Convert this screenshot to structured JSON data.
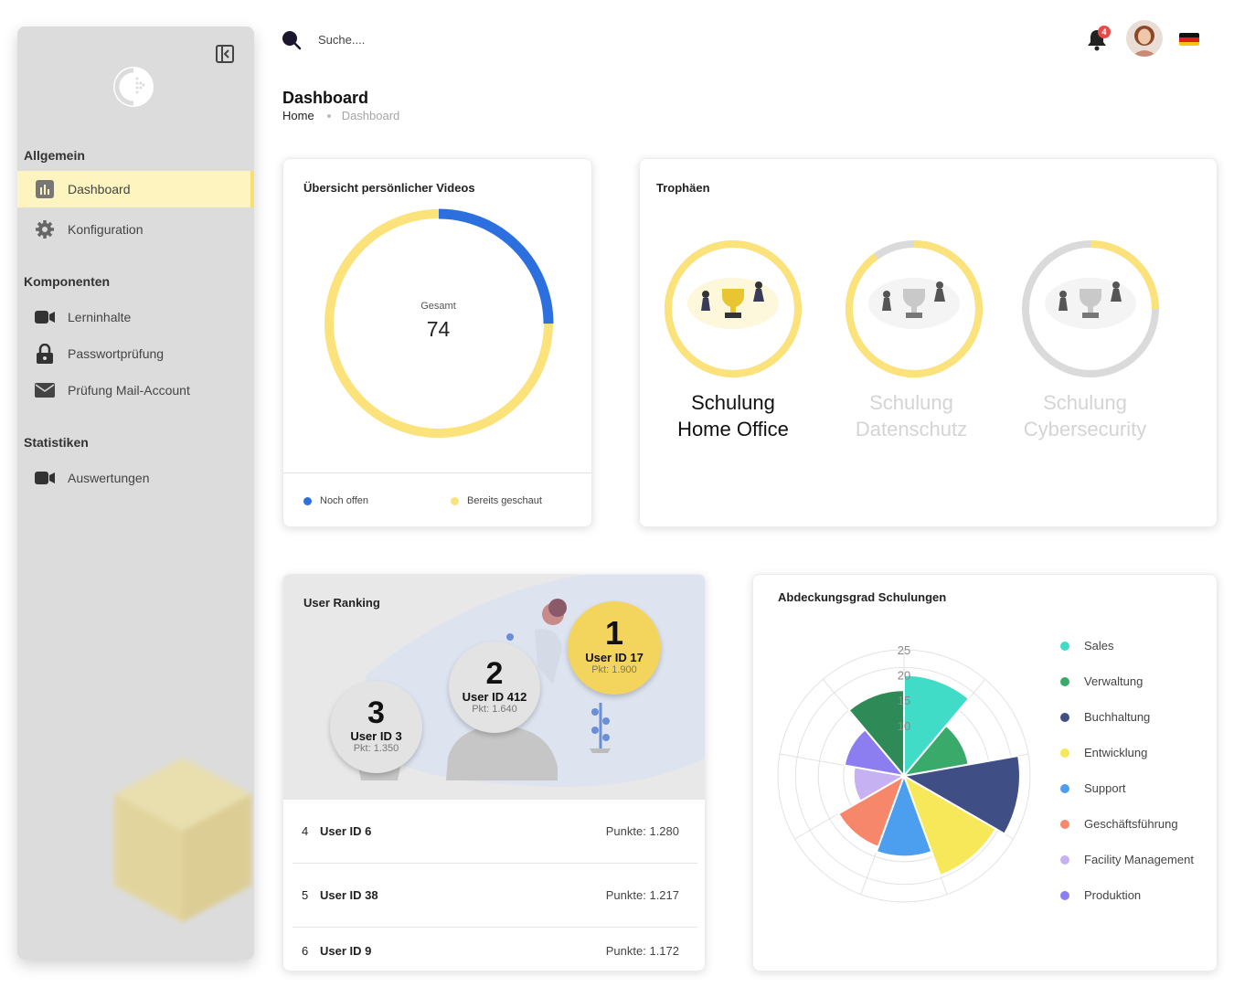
{
  "sidebar": {
    "sections": {
      "general": "Allgemein",
      "components": "Komponenten",
      "statistics": "Statistiken"
    },
    "items": {
      "dashboard": "Dashboard",
      "configuration": "Konfiguration",
      "learning": "Lerninhalte",
      "password": "Passwortprüfung",
      "mail": "Prüfung Mail-Account",
      "reports": "Auswertungen"
    }
  },
  "header": {
    "search_placeholder": "Suche....",
    "notification_count": "4",
    "language_flag": "de"
  },
  "page": {
    "title": "Dashboard",
    "breadcrumb": [
      "Home",
      "Dashboard"
    ]
  },
  "videos": {
    "title": "Übersicht persönlicher Videos",
    "total_label": "Gesamt",
    "total_value": "74",
    "legend": [
      "Noch offen",
      "Bereits geschaut"
    ],
    "open_fraction": 0.25,
    "colors": {
      "open": "#2c6fde",
      "watched": "#fbe27a"
    }
  },
  "trophies": {
    "title": "Trophäen",
    "items": [
      {
        "line1": "Schulung",
        "line2": "Home Office",
        "progress": 1.0,
        "active": true
      },
      {
        "line1": "Schulung",
        "line2": "Datenschutz",
        "progress": 0.9,
        "active": false
      },
      {
        "line1": "Schulung",
        "line2": "Cybersecurity",
        "progress": 0.25,
        "active": false
      }
    ]
  },
  "ranking": {
    "title": "User Ranking",
    "podium": [
      {
        "rank": "1",
        "user": "User ID 17",
        "points": "Pkt: 1.900"
      },
      {
        "rank": "2",
        "user": "User ID 412",
        "points": "Pkt: 1.640"
      },
      {
        "rank": "3",
        "user": "User ID 3",
        "points": "Pkt: 1.350"
      }
    ],
    "rows": [
      {
        "pos": "4",
        "user": "User ID 6",
        "points": "Punkte: 1.280"
      },
      {
        "pos": "5",
        "user": "User ID 38",
        "points": "Punkte: 1.217"
      },
      {
        "pos": "6",
        "user": "User ID 9",
        "points": "Punkte: 1.172"
      }
    ]
  },
  "coverage": {
    "title": "Abdeckungsgrad Schulungen",
    "legend": [
      {
        "label": "Sales",
        "color": "#40dcc8"
      },
      {
        "label": "Verwaltung",
        "color": "#3aaa6a"
      },
      {
        "label": "Buchhaltung",
        "color": "#3f4f85"
      },
      {
        "label": "Entwicklung",
        "color": "#f7e85a"
      },
      {
        "label": "Support",
        "color": "#4b9fee"
      },
      {
        "label": "Geschäftsführung",
        "color": "#f7876a"
      },
      {
        "label": "Facility Management",
        "color": "#c6b2f2"
      },
      {
        "label": "Produktion",
        "color": "#8c7ef0"
      }
    ]
  },
  "chart_data": {
    "type": "polar-area",
    "title": "Abdeckungsgrad Schulungen",
    "r_ticks": [
      "10",
      "15",
      "20",
      "25"
    ],
    "rmax": 25,
    "series": [
      {
        "name": "Sales",
        "value": 20,
        "color": "#40dcc8"
      },
      {
        "name": "Verwaltung",
        "value": 13,
        "color": "#3aaa6a"
      },
      {
        "name": "Buchhaltung",
        "value": 23,
        "color": "#3f4f85"
      },
      {
        "name": "Entwicklung",
        "value": 21,
        "color": "#f7e85a"
      },
      {
        "name": "Support",
        "value": 16,
        "color": "#4b9fee"
      },
      {
        "name": "Geschäftsführung",
        "value": 15,
        "color": "#f7876a"
      },
      {
        "name": "Facility Management",
        "value": 10,
        "color": "#c6b2f2"
      },
      {
        "name": "Produktion",
        "value": 12,
        "color": "#8c7ef0"
      },
      {
        "name": "",
        "value": 17,
        "color": "#2e8b57"
      }
    ]
  }
}
